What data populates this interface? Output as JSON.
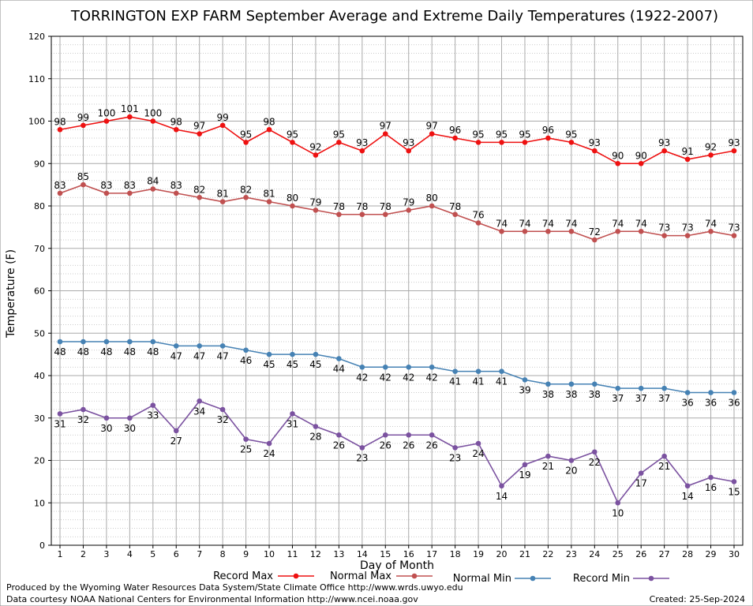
{
  "chart_data": {
    "type": "line",
    "title": "TORRINGTON EXP FARM September Average and Extreme Daily Temperatures (1922-2007)",
    "xlabel": "Day of Month",
    "ylabel": "Temperature (F)",
    "x": [
      1,
      2,
      3,
      4,
      5,
      6,
      7,
      8,
      9,
      10,
      11,
      12,
      13,
      14,
      15,
      16,
      17,
      18,
      19,
      20,
      21,
      22,
      23,
      24,
      25,
      26,
      27,
      28,
      29,
      30
    ],
    "xlim": [
      1,
      30
    ],
    "ylim": [
      0,
      120
    ],
    "yticks": [
      0,
      10,
      20,
      30,
      40,
      50,
      60,
      70,
      80,
      90,
      100,
      110,
      120
    ],
    "grid": true,
    "legend_position": "bottom",
    "series": [
      {
        "name": "Record Max",
        "color": "#ee1111",
        "label_position": "above",
        "values": [
          98,
          99,
          100,
          101,
          100,
          98,
          97,
          99,
          95,
          98,
          95,
          92,
          95,
          93,
          97,
          93,
          97,
          96,
          95,
          95,
          95,
          96,
          95,
          93,
          90,
          90,
          93,
          91,
          92,
          93
        ]
      },
      {
        "name": "Normal Max",
        "color": "#c05050",
        "label_position": "above",
        "values": [
          83,
          85,
          83,
          83,
          84,
          83,
          82,
          81,
          82,
          81,
          80,
          79,
          78,
          78,
          78,
          79,
          80,
          78,
          76,
          74,
          74,
          74,
          74,
          72,
          74,
          74,
          73,
          73,
          74,
          73
        ]
      },
      {
        "name": "Normal Min",
        "color": "#4682b4",
        "label_position": "below",
        "values": [
          48,
          48,
          48,
          48,
          48,
          47,
          47,
          47,
          46,
          45,
          45,
          45,
          44,
          42,
          42,
          42,
          42,
          41,
          41,
          41,
          39,
          38,
          38,
          38,
          37,
          37,
          37,
          36,
          36,
          36
        ]
      },
      {
        "name": "Record Min",
        "color": "#7b52a0",
        "label_position": "below",
        "values": [
          31,
          32,
          30,
          30,
          33,
          27,
          34,
          32,
          25,
          24,
          31,
          28,
          26,
          23,
          26,
          26,
          26,
          23,
          24,
          14,
          19,
          21,
          20,
          22,
          10,
          17,
          21,
          14,
          16,
          15
        ]
      }
    ]
  },
  "footer": {
    "produced_by": "Produced by the Wyoming Water Resources Data System/State Climate Office http://www.wrds.uwyo.edu",
    "courtesy": "Data courtesy NOAA National Centers for Environmental Information http://www.ncei.noaa.gov",
    "created": "Created:  25-Sep-2024"
  }
}
